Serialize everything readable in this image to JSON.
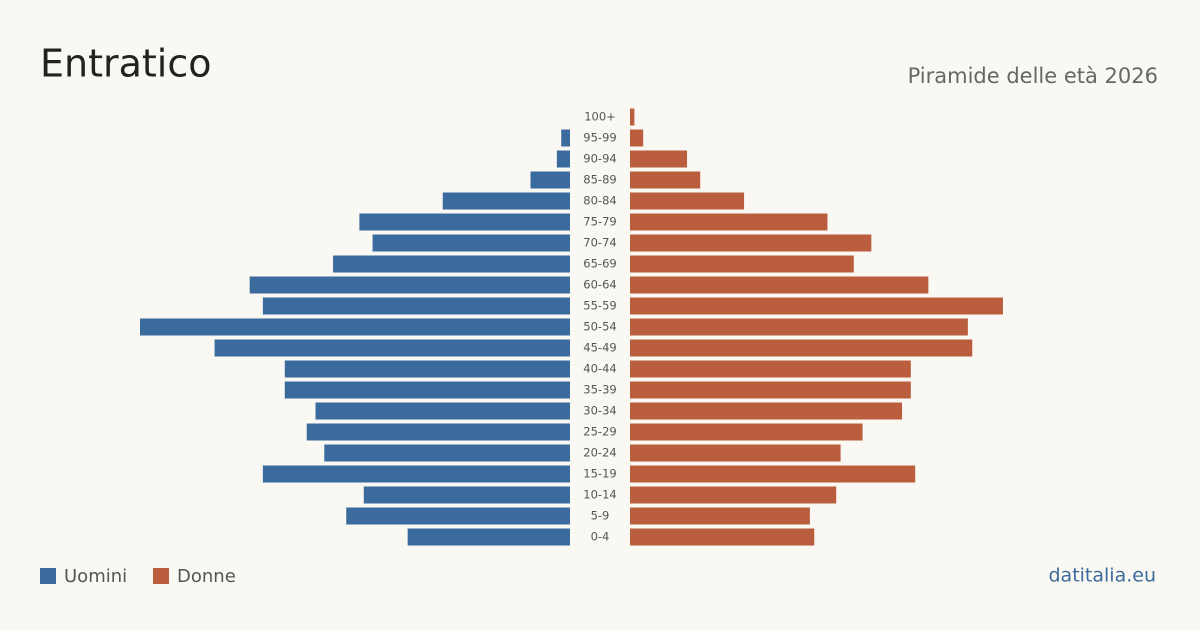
{
  "chart_data": {
    "type": "pyramid",
    "title": "Entratico",
    "subtitle": "Piramide delle età 2026",
    "source": "datitalia.eu",
    "categories": [
      "100+",
      "95-99",
      "90-94",
      "85-89",
      "80-84",
      "75-79",
      "70-74",
      "65-69",
      "60-64",
      "55-59",
      "50-54",
      "45-49",
      "40-44",
      "35-39",
      "30-34",
      "25-29",
      "20-24",
      "15-19",
      "10-14",
      "5-9",
      "0-4"
    ],
    "series": [
      {
        "name": "Uomini",
        "color": "#3b6a9c",
        "values": [
          0,
          2,
          3,
          9,
          29,
          48,
          45,
          54,
          73,
          70,
          98,
          81,
          65,
          65,
          58,
          60,
          56,
          70,
          47,
          51,
          37
        ]
      },
      {
        "name": "Donne",
        "color": "#bb5e3d",
        "values": [
          1,
          3,
          13,
          16,
          26,
          45,
          55,
          51,
          68,
          85,
          77,
          78,
          64,
          64,
          62,
          53,
          48,
          65,
          47,
          41,
          42
        ]
      }
    ]
  }
}
